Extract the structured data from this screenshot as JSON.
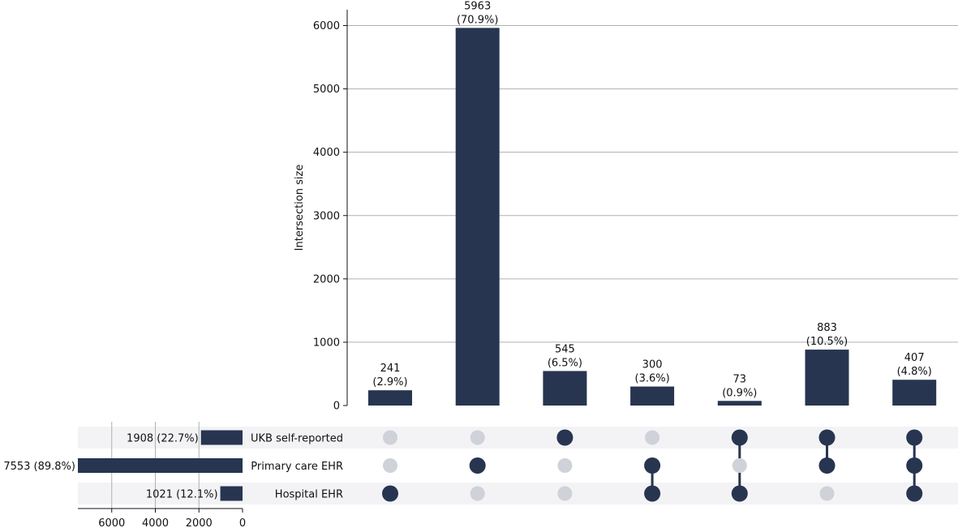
{
  "chart_data": {
    "type": "upset",
    "ylabel": "Intersection size",
    "ylim": [
      0,
      6250
    ],
    "yticks": [
      0,
      1000,
      2000,
      3000,
      4000,
      5000,
      6000
    ],
    "grid": true,
    "sets": [
      {
        "name": "UKB self-reported",
        "size": 1908,
        "label": "1908 (22.7%)"
      },
      {
        "name": "Primary care EHR",
        "size": 7553,
        "label": "7553 (89.8%)"
      },
      {
        "name": "Hospital EHR",
        "size": 1021,
        "label": "1021 (12.1%)"
      }
    ],
    "set_size_ticks": [
      6000,
      4000,
      2000,
      0
    ],
    "set_size_xlim": [
      7553,
      0
    ],
    "intersections": [
      {
        "size": 241,
        "count_label": "241",
        "pct_label": "(2.9%)",
        "members": [
          false,
          false,
          true
        ]
      },
      {
        "size": 5963,
        "count_label": "5963",
        "pct_label": "(70.9%)",
        "members": [
          false,
          true,
          false
        ]
      },
      {
        "size": 545,
        "count_label": "545",
        "pct_label": "(6.5%)",
        "members": [
          true,
          false,
          false
        ]
      },
      {
        "size": 300,
        "count_label": "300",
        "pct_label": "(3.6%)",
        "members": [
          false,
          true,
          true
        ]
      },
      {
        "size": 73,
        "count_label": "73",
        "pct_label": "(0.9%)",
        "members": [
          true,
          false,
          true
        ]
      },
      {
        "size": 883,
        "count_label": "883",
        "pct_label": "(10.5%)",
        "members": [
          true,
          true,
          false
        ]
      },
      {
        "size": 407,
        "count_label": "407",
        "pct_label": "(4.8%)",
        "members": [
          true,
          true,
          true
        ]
      }
    ],
    "colors": {
      "bar": "#273550",
      "dot_active": "#273550",
      "dot_inactive": "#d0d2d9",
      "row_shade": "#f3f3f6",
      "grid": "#b0b0b0"
    }
  }
}
